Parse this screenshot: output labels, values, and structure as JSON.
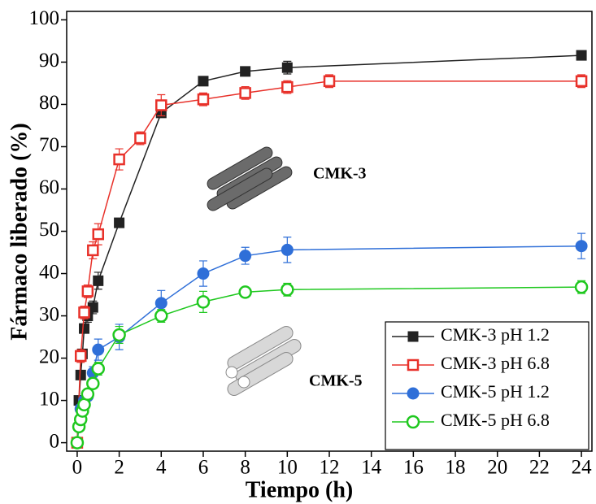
{
  "chart_data": {
    "type": "line",
    "xlabel": "Tiempo (h)",
    "ylabel": "Fármaco liberado (%)",
    "xlim": [
      -0.5,
      24.5
    ],
    "ylim": [
      -2,
      102
    ],
    "xticks": [
      0,
      2,
      4,
      6,
      8,
      10,
      12,
      14,
      16,
      18,
      20,
      22,
      24
    ],
    "yticks": [
      0,
      10,
      20,
      30,
      40,
      50,
      60,
      70,
      80,
      90,
      100
    ],
    "legend": "lower right",
    "annotations": [
      "CMK-3",
      "CMK-5"
    ],
    "series": [
      {
        "name": "CMK-3 pH 1.2",
        "color": "#222222",
        "marker": "square",
        "fill": "filled",
        "x": [
          0,
          0.083,
          0.167,
          0.25,
          0.333,
          0.5,
          0.75,
          1,
          2,
          4,
          6,
          8,
          10,
          24
        ],
        "values": [
          0,
          10,
          16,
          21,
          27,
          30,
          32,
          38.3,
          52,
          78,
          85.5,
          87.8,
          88.7,
          91.6
        ],
        "errors": [
          0.5,
          1,
          1,
          1,
          1,
          1.5,
          1.5,
          2,
          1,
          1,
          1,
          1,
          1.5,
          1
        ]
      },
      {
        "name": "CMK-3 pH 6.8",
        "color": "#e8312a",
        "marker": "square",
        "fill": "open",
        "x": [
          0,
          0.167,
          0.333,
          0.5,
          0.75,
          1,
          2,
          3,
          4,
          6,
          8,
          10,
          12,
          24
        ],
        "values": [
          0,
          20.5,
          30.8,
          35.8,
          45.5,
          49.3,
          67,
          72,
          79.8,
          81.2,
          82.7,
          84.1,
          85.5,
          85.5
        ],
        "errors": [
          0.5,
          1.5,
          1.5,
          1.5,
          2,
          2.5,
          2.5,
          1.5,
          2.5,
          1.5,
          1.5,
          1.5,
          1.5,
          1.5
        ]
      },
      {
        "name": "CMK-5 pH 1.2",
        "color": "#2f6fd8",
        "marker": "circle",
        "fill": "filled",
        "x": [
          0,
          0.167,
          0.333,
          0.5,
          0.75,
          1,
          2,
          4,
          6,
          8,
          10,
          24
        ],
        "values": [
          0,
          8,
          10,
          11,
          16.5,
          22,
          25,
          33,
          40,
          44.2,
          45.6,
          46.5
        ],
        "errors": [
          0.5,
          1,
          1,
          1,
          1.5,
          2.5,
          3,
          3,
          3,
          2,
          3,
          3
        ]
      },
      {
        "name": "CMK-5 pH 6.8",
        "color": "#1fc81f",
        "marker": "circle",
        "fill": "open",
        "x": [
          0,
          0.083,
          0.167,
          0.25,
          0.333,
          0.5,
          0.75,
          1,
          2,
          4,
          6,
          8,
          10,
          24
        ],
        "values": [
          0,
          3.8,
          5.5,
          7.5,
          9,
          11.5,
          14,
          17.5,
          25.5,
          30,
          33.3,
          35.6,
          36.2,
          36.8
        ],
        "errors": [
          0.5,
          1,
          1,
          1,
          1,
          1,
          1,
          1.5,
          2,
          1.5,
          2.5,
          1,
          1.5,
          1.5
        ]
      }
    ]
  }
}
